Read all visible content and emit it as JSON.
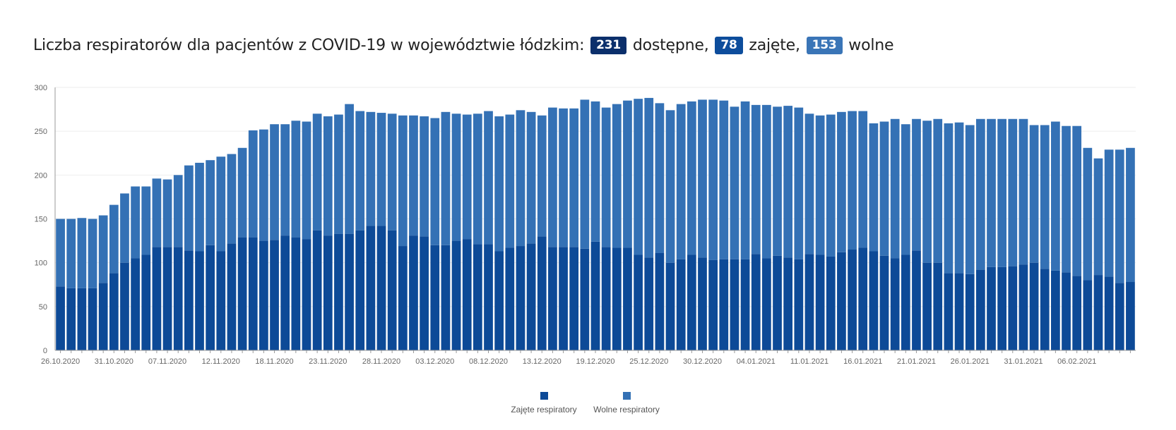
{
  "title": {
    "text": "Liczba respiratorów dla pacjentów z COVID-19 w województwie łódzkim:",
    "available_value": "231",
    "available_label": "dostępne,",
    "occupied_value": "78",
    "occupied_label": "zajęte,",
    "free_value": "153",
    "free_label": "wolne"
  },
  "colors": {
    "badge_available": "#0b2f6b",
    "badge_occupied": "#0d4d9c",
    "badge_free": "#3a75b7",
    "occupied": "#0d4a97",
    "free": "#3471b5",
    "axis": "#999999",
    "grid": "#eeeeee"
  },
  "chart_data": {
    "type": "bar",
    "stacked": true,
    "ylim": [
      0,
      300
    ],
    "yticks": [
      0,
      50,
      100,
      150,
      200,
      250,
      300
    ],
    "xtick_labels": [
      "26.10.2020",
      "31.10.2020",
      "07.11.2020",
      "12.11.2020",
      "18.11.2020",
      "23.11.2020",
      "28.11.2020",
      "03.12.2020",
      "08.12.2020",
      "13.12.2020",
      "19.12.2020",
      "25.12.2020",
      "30.12.2020",
      "04.01.2021",
      "11.01.2021",
      "16.01.2021",
      "21.01.2021",
      "26.01.2021",
      "31.01.2021",
      "06.02.2021"
    ],
    "xtick_every": 5,
    "series": [
      {
        "name": "Zajęte respiratory",
        "values": [
          73,
          71,
          71,
          71,
          77,
          88,
          100,
          105,
          109,
          118,
          118,
          118,
          114,
          113,
          120,
          113,
          122,
          129,
          129,
          125,
          126,
          131,
          129,
          127,
          137,
          131,
          133,
          133,
          137,
          142,
          142,
          137,
          119,
          131,
          130,
          120,
          120,
          125,
          127,
          121,
          121,
          113,
          117,
          119,
          122,
          130,
          118,
          118,
          118,
          116,
          124,
          118,
          117,
          117,
          109,
          106,
          111,
          100,
          104,
          109,
          106,
          103,
          104,
          104,
          104,
          110,
          105,
          108,
          106,
          104,
          110,
          109,
          107,
          112,
          115,
          117,
          113,
          108,
          105,
          109,
          114,
          100,
          100,
          88,
          88,
          87,
          92,
          95,
          95,
          96,
          98,
          100,
          93,
          91,
          89,
          85,
          80,
          86,
          84,
          77,
          78
        ],
        "color": "#0d4a97"
      },
      {
        "name": "Wolne respiratory",
        "values": [
          77,
          79,
          80,
          79,
          77,
          78,
          79,
          82,
          78,
          78,
          77,
          82,
          97,
          101,
          97,
          108,
          102,
          102,
          122,
          127,
          132,
          127,
          133,
          134,
          133,
          136,
          136,
          148,
          136,
          130,
          129,
          133,
          149,
          137,
          137,
          145,
          152,
          145,
          142,
          149,
          152,
          154,
          152,
          155,
          150,
          138,
          159,
          158,
          158,
          170,
          160,
          159,
          164,
          168,
          178,
          182,
          171,
          174,
          177,
          175,
          180,
          183,
          181,
          174,
          180,
          170,
          175,
          170,
          173,
          173,
          160,
          159,
          162,
          160,
          158,
          156,
          146,
          153,
          159,
          149,
          150,
          162,
          164,
          171,
          172,
          170,
          172,
          169,
          169,
          168,
          166,
          157,
          164,
          170,
          167,
          171,
          151,
          133,
          145,
          152,
          153
        ],
        "color": "#3471b5"
      }
    ]
  },
  "legend": {
    "occupied_label": "Zajęte respiratory",
    "free_label": "Wolne respiratory"
  }
}
